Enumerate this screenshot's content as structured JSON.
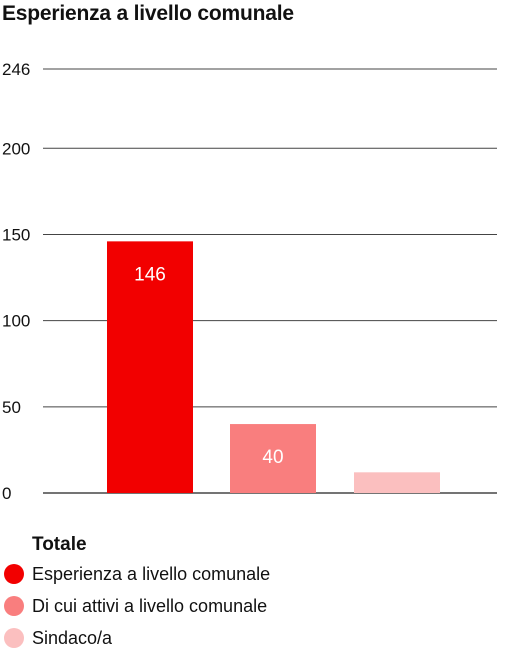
{
  "chart_data": {
    "type": "bar",
    "title": "Esperienza a livello comunale",
    "categories": [
      "Esperienza a livello comunale",
      "Di cui attivi a livello comunale",
      "Sindaco/a"
    ],
    "values": [
      146,
      40,
      12
    ],
    "colors": [
      "#f20000",
      "#f97e7e",
      "#fbbfbf"
    ],
    "ylim": [
      0,
      246
    ],
    "yticks": [
      0,
      50,
      100,
      150,
      200,
      246
    ],
    "grid": true,
    "legend": {
      "title": "Totale",
      "placement": "bottom-left"
    }
  }
}
